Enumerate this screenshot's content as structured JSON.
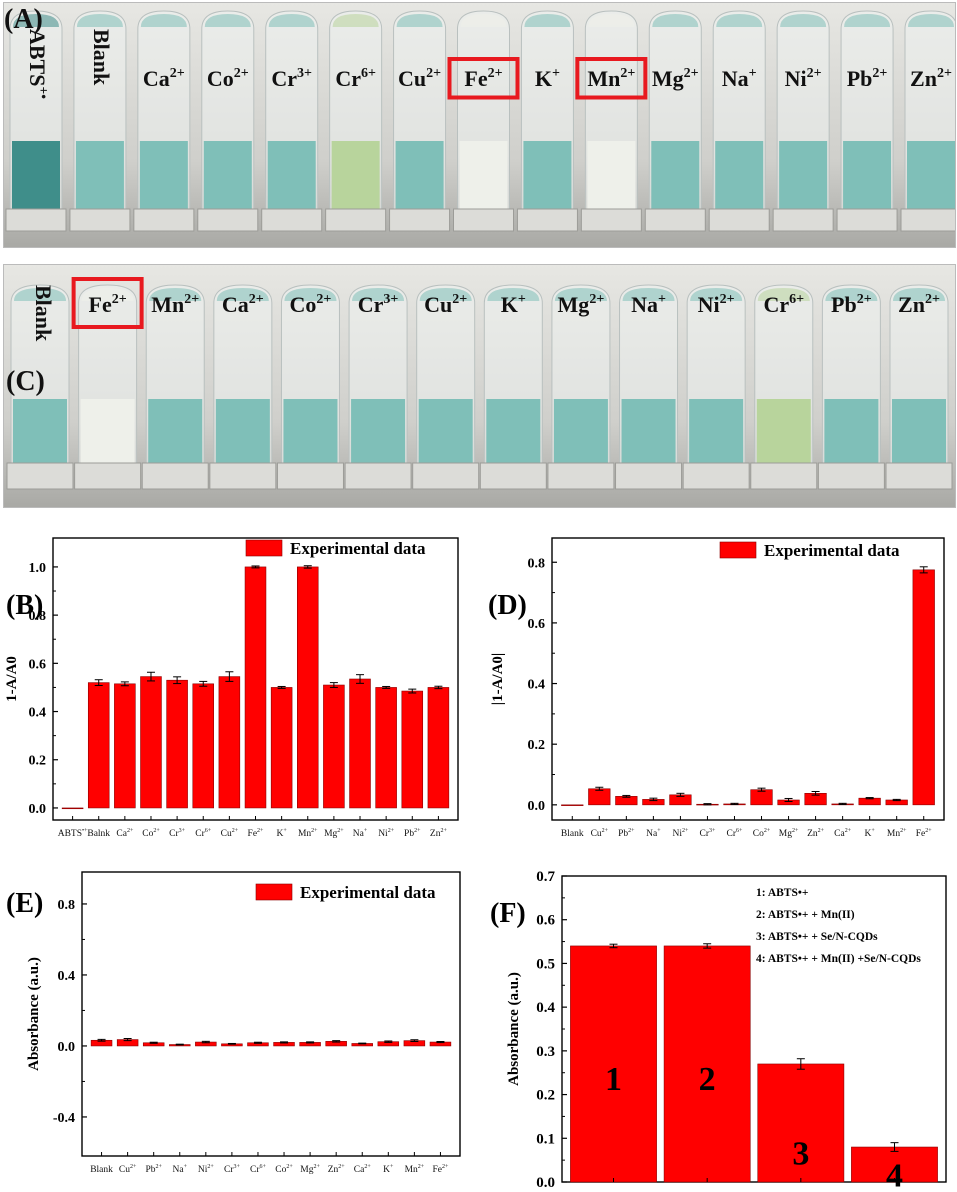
{
  "colors": {
    "bar": "#ff0000",
    "highlight_box": "#e8191f",
    "solution": "#7fbfb8",
    "solution_dark": "#3f8e8a",
    "solution_pale": "#eef0ea",
    "solution_green": "#b8d49c"
  },
  "photo_a": {
    "panel_label": "(A)",
    "tubes": [
      {
        "label": "ABTS",
        "sup": "+•",
        "tint": "dark",
        "vertical": true
      },
      {
        "label": "Blank",
        "sup": "",
        "tint": "normal",
        "vertical": true
      },
      {
        "label": "Ca",
        "sup": "2+",
        "tint": "normal"
      },
      {
        "label": "Co",
        "sup": "2+",
        "tint": "normal"
      },
      {
        "label": "Cr",
        "sup": "3+",
        "tint": "normal"
      },
      {
        "label": "Cr",
        "sup": "6+",
        "tint": "green"
      },
      {
        "label": "Cu",
        "sup": "2+",
        "tint": "normal"
      },
      {
        "label": "Fe",
        "sup": "2+",
        "tint": "pale",
        "boxed": true
      },
      {
        "label": "K",
        "sup": "+",
        "tint": "normal"
      },
      {
        "label": "Mn",
        "sup": "2+",
        "tint": "pale",
        "boxed": true
      },
      {
        "label": "Mg",
        "sup": "2+",
        "tint": "normal"
      },
      {
        "label": "Na",
        "sup": "+",
        "tint": "normal"
      },
      {
        "label": "Ni",
        "sup": "2+",
        "tint": "normal"
      },
      {
        "label": "Pb",
        "sup": "2+",
        "tint": "normal"
      },
      {
        "label": "Zn",
        "sup": "2+",
        "tint": "normal"
      }
    ]
  },
  "photo_c": {
    "panel_label": "(C)",
    "tubes": [
      {
        "label": "Blank",
        "sup": "",
        "tint": "normal",
        "vertical": true
      },
      {
        "label": "Fe",
        "sup": "2+",
        "tint": "pale",
        "boxed": true
      },
      {
        "label": "Mn",
        "sup": "2+",
        "tint": "normal"
      },
      {
        "label": "Ca",
        "sup": "2+",
        "tint": "normal"
      },
      {
        "label": "Co",
        "sup": "2+",
        "tint": "normal"
      },
      {
        "label": "Cr",
        "sup": "3+",
        "tint": "normal"
      },
      {
        "label": "Cu",
        "sup": "2+",
        "tint": "normal"
      },
      {
        "label": "K",
        "sup": "+",
        "tint": "normal"
      },
      {
        "label": "Mg",
        "sup": "2+",
        "tint": "normal"
      },
      {
        "label": "Na",
        "sup": "+",
        "tint": "normal"
      },
      {
        "label": "Ni",
        "sup": "2+",
        "tint": "normal"
      },
      {
        "label": "Cr",
        "sup": "6+",
        "tint": "green"
      },
      {
        "label": "Pb",
        "sup": "2+",
        "tint": "normal"
      },
      {
        "label": "Zn",
        "sup": "2+",
        "tint": "normal"
      }
    ]
  },
  "chart_data": [
    {
      "panel": "(B)",
      "type": "bar",
      "ylabel": "1-A/A0",
      "xlabel": "",
      "ylim": [
        -0.05,
        1.12
      ],
      "yticks": [
        "0.0",
        "0.2",
        "0.4",
        "0.6",
        "0.8",
        "1.0"
      ],
      "legend": "Experimental data",
      "legend_position": "top-right",
      "categories": [
        "ABTS•+",
        "Balnk",
        "Ca2+",
        "Co2+",
        "Cr3+",
        "Cr6+",
        "Cu2+",
        "Fe2+",
        "K+",
        "Mn2+",
        "Mg2+",
        "Na+",
        "Ni2+",
        "Pb2+",
        "Zn2+"
      ],
      "values": [
        0.0,
        0.52,
        0.515,
        0.545,
        0.53,
        0.515,
        0.545,
        1.0,
        0.5,
        1.0,
        0.51,
        0.535,
        0.5,
        0.485,
        0.5
      ],
      "errors": [
        0.0,
        0.012,
        0.008,
        0.018,
        0.014,
        0.01,
        0.02,
        0.004,
        0.004,
        0.005,
        0.01,
        0.018,
        0.004,
        0.008,
        0.005
      ]
    },
    {
      "panel": "(D)",
      "type": "bar",
      "ylabel": "|1-A/A0|",
      "xlabel": "",
      "ylim": [
        -0.05,
        0.88
      ],
      "yticks": [
        "0.0",
        "0.2",
        "0.4",
        "0.6",
        "0.8"
      ],
      "legend": "Experimental data",
      "legend_position": "top-right",
      "categories": [
        "Blank",
        "Cu2+",
        "Pb2+",
        "Na+",
        "Ni2+",
        "Cr3+",
        "Cr6+",
        "Co2+",
        "Mg2+",
        "Zn2+",
        "Ca2+",
        "K+",
        "Mn2+",
        "Fe2+"
      ],
      "values": [
        0.0,
        0.053,
        0.028,
        0.018,
        0.033,
        0.002,
        0.003,
        0.05,
        0.016,
        0.038,
        0.003,
        0.022,
        0.016,
        0.775
      ],
      "errors": [
        0.0,
        0.005,
        0.003,
        0.004,
        0.005,
        0.002,
        0.002,
        0.005,
        0.005,
        0.006,
        0.002,
        0.002,
        0.002,
        0.01
      ]
    },
    {
      "panel": "(E)",
      "type": "bar",
      "ylabel": "Absorbance (a.u.)",
      "xlabel": "",
      "ylim": [
        -0.62,
        0.98
      ],
      "yticks": [
        "-0.4",
        "0.0",
        "0.4",
        "0.8"
      ],
      "legend": "Experimental data",
      "legend_position": "top-right",
      "categories": [
        "Blank",
        "Cu2+",
        "Pb2+",
        "Na+",
        "Ni2+",
        "Cr3+",
        "Cr6+",
        "Co2+",
        "Mg2+",
        "Zn2+",
        "Ca2+",
        "K+",
        "Mn2+",
        "Fe2+"
      ],
      "values": [
        0.032,
        0.036,
        0.018,
        0.008,
        0.022,
        0.012,
        0.018,
        0.02,
        0.02,
        0.026,
        0.014,
        0.024,
        0.03,
        0.022
      ],
      "errors": [
        0.005,
        0.006,
        0.003,
        0.002,
        0.004,
        0.002,
        0.003,
        0.003,
        0.003,
        0.004,
        0.002,
        0.004,
        0.005,
        0.003
      ]
    },
    {
      "panel": "(F)",
      "type": "bar",
      "ylabel": "Absorbance (a.u.)",
      "xlabel": "",
      "ylim": [
        0.0,
        0.7
      ],
      "yticks": [
        "0.0",
        "0.1",
        "0.2",
        "0.3",
        "0.4",
        "0.5",
        "0.6",
        "0.7"
      ],
      "legend_position": "top-right",
      "legend_items": [
        "1: ABTS•+",
        "2: ABTS•+ + Mn(II)",
        "3: ABTS•+ + Se/N-CQDs",
        "4: ABTS•+ + Mn(II) +Se/N-CQDs"
      ],
      "categories": [
        "1",
        "2",
        "3",
        "4"
      ],
      "values": [
        0.54,
        0.54,
        0.27,
        0.08
      ],
      "errors": [
        0.004,
        0.005,
        0.012,
        0.01
      ]
    }
  ]
}
